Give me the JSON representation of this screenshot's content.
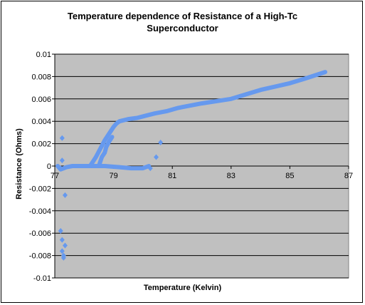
{
  "chart_data": {
    "type": "scatter",
    "title_lines": [
      "Temperature dependence of Resistance of a High-Tc",
      "Superconductor"
    ],
    "xlabel": "Temperature (Kelvin)",
    "ylabel": "Resistance (Ohms)",
    "xlim": [
      77,
      87
    ],
    "ylim": [
      -0.01,
      0.01
    ],
    "xticks": [
      "77",
      "79",
      "81",
      "83",
      "85",
      "87"
    ],
    "yticks": [
      "0.01",
      "0.008",
      "0.006",
      "0.004",
      "0.002",
      "0",
      "-0.002",
      "-0.004",
      "-0.006",
      "-0.008",
      "-0.01"
    ],
    "grid": "horizontal",
    "plot_background": "#c0c0c0",
    "series": [
      {
        "color": "#6699ee",
        "segments": [
          [
            [
              77.1,
              0.0
            ],
            [
              77.2,
              -0.0003
            ],
            [
              77.4,
              -0.0001
            ],
            [
              77.6,
              0.0
            ],
            [
              78.0,
              0.0
            ],
            [
              78.4,
              0.0
            ],
            [
              78.7,
              0.0
            ],
            [
              79.2,
              -0.0001
            ],
            [
              79.6,
              -0.0002
            ],
            [
              80.0,
              -0.0002
            ],
            [
              80.2,
              0.0
            ]
          ],
          [
            [
              78.2,
              0.0
            ],
            [
              78.3,
              0.0004
            ],
            [
              78.4,
              0.0008
            ],
            [
              78.5,
              0.0013
            ],
            [
              78.6,
              0.0018
            ],
            [
              78.7,
              0.0023
            ],
            [
              78.8,
              0.0027
            ],
            [
              78.9,
              0.0031
            ],
            [
              79.0,
              0.0035
            ],
            [
              79.1,
              0.0038
            ],
            [
              79.2,
              0.004
            ],
            [
              79.5,
              0.0042
            ],
            [
              79.8,
              0.0043
            ],
            [
              80.1,
              0.0045
            ],
            [
              80.4,
              0.0047
            ],
            [
              80.8,
              0.0049
            ],
            [
              81.2,
              0.0052
            ],
            [
              82.0,
              0.0056
            ],
            [
              83.0,
              0.006
            ],
            [
              84.0,
              0.0068
            ],
            [
              85.0,
              0.0074
            ],
            [
              85.5,
              0.0078
            ],
            [
              86.2,
              0.0084
            ]
          ],
          [
            [
              78.5,
              0.0
            ],
            [
              78.55,
              0.0004
            ],
            [
              78.6,
              0.0008
            ],
            [
              78.7,
              0.0012
            ],
            [
              78.75,
              0.0017
            ],
            [
              78.85,
              0.0022
            ],
            [
              78.95,
              0.0026
            ]
          ]
        ],
        "points": [
          [
            77.25,
            0.0025
          ],
          [
            77.25,
            0.0005
          ],
          [
            77.2,
            -0.0002
          ],
          [
            77.35,
            -0.0026
          ],
          [
            77.2,
            -0.0058
          ],
          [
            77.25,
            -0.0066
          ],
          [
            77.35,
            -0.0071
          ],
          [
            77.25,
            -0.0076
          ],
          [
            77.3,
            -0.008
          ],
          [
            77.3,
            -0.0082
          ],
          [
            80.45,
            0.0008
          ],
          [
            80.6,
            0.0021
          ],
          [
            80.25,
            -0.0002
          ]
        ]
      }
    ]
  }
}
